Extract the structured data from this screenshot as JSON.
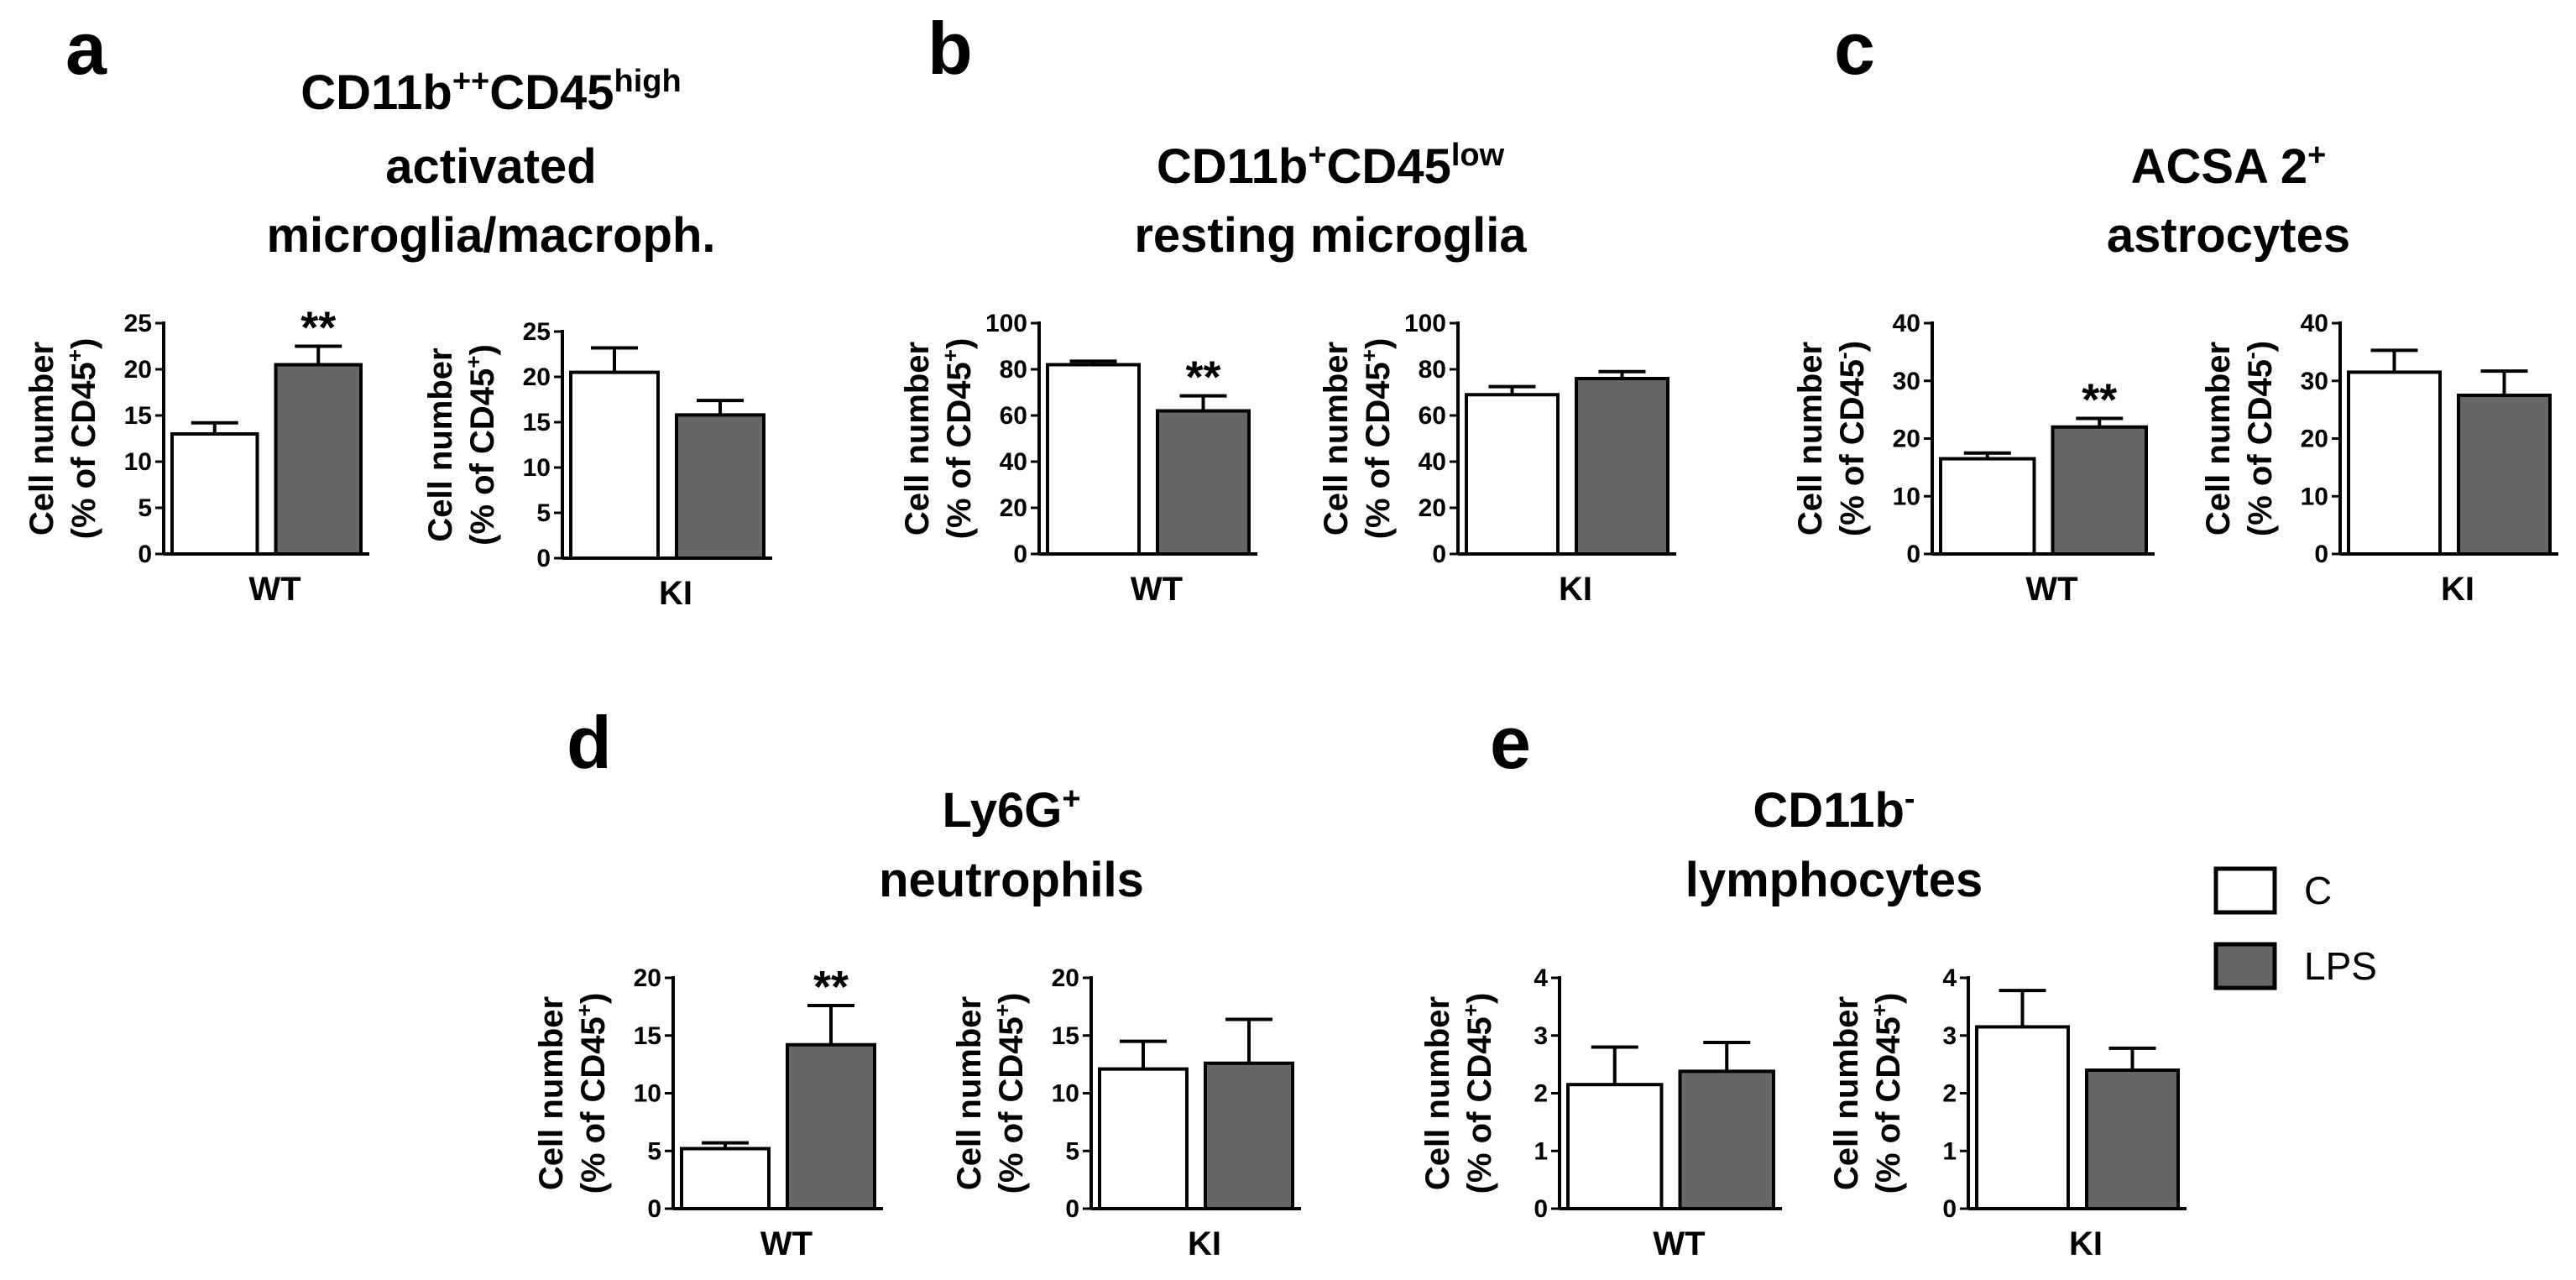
{
  "colors": {
    "C": "#ffffff",
    "LPS": "#666666",
    "stroke": "#000000"
  },
  "legend": [
    {
      "key": "C",
      "label": "C"
    },
    {
      "key": "LPS",
      "label": "LPS"
    }
  ],
  "panels": [
    {
      "letter": "a",
      "title_lines": [
        [
          {
            "t": "CD11b"
          },
          {
            "t": "++",
            "sup": true
          },
          {
            "t": "CD45"
          },
          {
            "t": "high",
            "sup": true
          }
        ],
        [
          {
            "t": "activated"
          }
        ],
        [
          {
            "t": "microglia/macroph."
          }
        ]
      ]
    },
    {
      "letter": "b",
      "title_lines": [
        [
          {
            "t": "CD11b"
          },
          {
            "t": "+",
            "sup": true
          },
          {
            "t": "CD45"
          },
          {
            "t": "low",
            "sup": true
          }
        ],
        [
          {
            "t": "resting microglia"
          }
        ]
      ]
    },
    {
      "letter": "c",
      "title_lines": [
        [
          {
            "t": "ACSA 2"
          },
          {
            "t": "+",
            "sup": true
          }
        ],
        [
          {
            "t": "astrocytes"
          }
        ]
      ]
    },
    {
      "letter": "d",
      "title_lines": [
        [
          {
            "t": "Ly6G"
          },
          {
            "t": "+",
            "sup": true
          }
        ],
        [
          {
            "t": "neutrophils"
          }
        ]
      ]
    },
    {
      "letter": "e",
      "title_lines": [
        [
          {
            "t": "CD11b"
          },
          {
            "t": "-",
            "sup": true
          }
        ],
        [
          {
            "t": "lymphocytes"
          }
        ]
      ]
    }
  ],
  "chart_data": [
    {
      "type": "bar",
      "panel": "a",
      "group": "WT",
      "xlabel": "WT",
      "ylabel_line1": "Cell number",
      "ylabel_line2": "(% of CD45",
      "ylabel_sup": "+",
      "ylabel_close": ")",
      "ylim": [
        0,
        25
      ],
      "ticks": [
        0,
        5,
        10,
        15,
        20,
        25
      ],
      "categories": [
        "C",
        "LPS"
      ],
      "values": [
        13,
        20.5
      ],
      "errors": [
        1.2,
        2.0
      ],
      "significance": [
        "",
        "**"
      ]
    },
    {
      "type": "bar",
      "panel": "a",
      "group": "KI",
      "xlabel": "KI",
      "ylabel_line1": "Cell number",
      "ylabel_line2": "(% of CD45",
      "ylabel_sup": "+",
      "ylabel_close": ")",
      "ylim": [
        0,
        25
      ],
      "ticks": [
        0,
        5,
        10,
        15,
        20,
        25
      ],
      "categories": [
        "C",
        "LPS"
      ],
      "values": [
        20.5,
        15.8
      ],
      "errors": [
        2.7,
        1.6
      ],
      "significance": [
        "",
        ""
      ]
    },
    {
      "type": "bar",
      "panel": "b",
      "group": "WT",
      "xlabel": "WT",
      "ylabel_line1": "Cell number",
      "ylabel_line2": "(% of CD45",
      "ylabel_sup": "+",
      "ylabel_close": ")",
      "ylim": [
        0,
        100
      ],
      "ticks": [
        0,
        20,
        40,
        60,
        80,
        100
      ],
      "categories": [
        "C",
        "LPS"
      ],
      "values": [
        82,
        62
      ],
      "errors": [
        1.5,
        6.5
      ],
      "significance": [
        "",
        "**"
      ]
    },
    {
      "type": "bar",
      "panel": "b",
      "group": "KI",
      "xlabel": "KI",
      "ylabel_line1": "Cell number",
      "ylabel_line2": "(% of CD45",
      "ylabel_sup": "+",
      "ylabel_close": ")",
      "ylim": [
        0,
        100
      ],
      "ticks": [
        0,
        20,
        40,
        60,
        80,
        100
      ],
      "categories": [
        "C",
        "LPS"
      ],
      "values": [
        69,
        76
      ],
      "errors": [
        3.5,
        3.0
      ],
      "significance": [
        "",
        ""
      ]
    },
    {
      "type": "bar",
      "panel": "c",
      "group": "WT",
      "xlabel": "WT",
      "ylabel_line1": "Cell number",
      "ylabel_line2": "(% of CD45",
      "ylabel_sup": "-",
      "ylabel_close": ")",
      "ylim": [
        0,
        40
      ],
      "ticks": [
        0,
        10,
        20,
        30,
        40
      ],
      "categories": [
        "C",
        "LPS"
      ],
      "values": [
        16.5,
        22
      ],
      "errors": [
        1.0,
        1.5
      ],
      "significance": [
        "",
        "**"
      ]
    },
    {
      "type": "bar",
      "panel": "c",
      "group": "KI",
      "xlabel": "KI",
      "ylabel_line1": "Cell number",
      "ylabel_line2": "(% of CD45",
      "ylabel_sup": "-",
      "ylabel_close": ")",
      "ylim": [
        0,
        40
      ],
      "ticks": [
        0,
        10,
        20,
        30,
        40
      ],
      "categories": [
        "C",
        "LPS"
      ],
      "values": [
        31.5,
        27.5
      ],
      "errors": [
        3.8,
        4.2
      ],
      "significance": [
        "",
        ""
      ]
    },
    {
      "type": "bar",
      "panel": "d",
      "group": "WT",
      "xlabel": "WT",
      "ylabel_line1": "Cell number",
      "ylabel_line2": "(% of CD45",
      "ylabel_sup": "+",
      "ylabel_close": ")",
      "ylim": [
        0,
        20
      ],
      "ticks": [
        0,
        5,
        10,
        15,
        20
      ],
      "categories": [
        "C",
        "LPS"
      ],
      "values": [
        5.2,
        14.2
      ],
      "errors": [
        0.5,
        3.4
      ],
      "significance": [
        "",
        "**"
      ]
    },
    {
      "type": "bar",
      "panel": "d",
      "group": "KI",
      "xlabel": "KI",
      "ylabel_line1": "Cell number",
      "ylabel_line2": "(% of CD45",
      "ylabel_sup": "+",
      "ylabel_close": ")",
      "ylim": [
        0,
        20
      ],
      "ticks": [
        0,
        5,
        10,
        15,
        20
      ],
      "categories": [
        "C",
        "LPS"
      ],
      "values": [
        12.1,
        12.6
      ],
      "errors": [
        2.4,
        3.8
      ],
      "significance": [
        "",
        ""
      ]
    },
    {
      "type": "bar",
      "panel": "e",
      "group": "WT",
      "xlabel": "WT",
      "ylabel_line1": "Cell number",
      "ylabel_line2": "(% of CD45",
      "ylabel_sup": "+",
      "ylabel_close": ")",
      "ylim": [
        0,
        4
      ],
      "ticks": [
        0,
        1,
        2,
        3,
        4
      ],
      "categories": [
        "C",
        "LPS"
      ],
      "values": [
        2.15,
        2.38
      ],
      "errors": [
        0.65,
        0.5
      ],
      "significance": [
        "",
        ""
      ]
    },
    {
      "type": "bar",
      "panel": "e",
      "group": "KI",
      "xlabel": "KI",
      "ylabel_line1": "Cell number",
      "ylabel_line2": "(% of CD45",
      "ylabel_sup": "+",
      "ylabel_close": ")",
      "ylim": [
        0,
        4
      ],
      "ticks": [
        0,
        1,
        2,
        3,
        4
      ],
      "categories": [
        "C",
        "LPS"
      ],
      "values": [
        3.15,
        2.4
      ],
      "errors": [
        0.63,
        0.38
      ],
      "significance": [
        "",
        ""
      ]
    }
  ]
}
